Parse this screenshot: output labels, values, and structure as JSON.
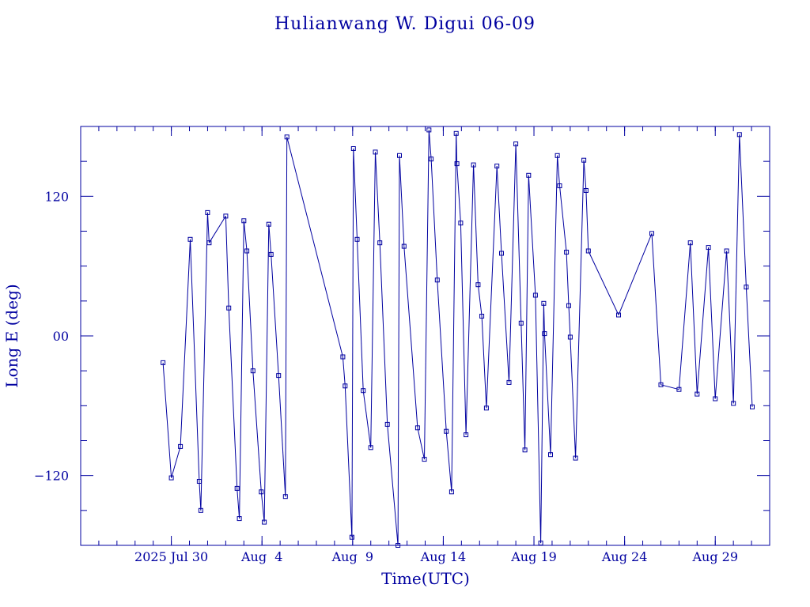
{
  "chart_data": {
    "type": "line",
    "title": "Hulianwang W. Digui 06-09",
    "xlabel": "Time(UTC)",
    "ylabel": "Long E (deg)",
    "x_unit": "days in UTC, date ticks",
    "xlim": [
      "2025-07-25",
      "2025-09-01"
    ],
    "ylim": [
      -180,
      180
    ],
    "yticks": [
      -120,
      0,
      120
    ],
    "ytick_labels": [
      "−120",
      "00",
      "120"
    ],
    "xticks": [
      {
        "date": "2025-07-30",
        "label": "2025 Jul 30"
      },
      {
        "date": "2025-08-04",
        "label": "Aug  4"
      },
      {
        "date": "2025-08-09",
        "label": "Aug  9"
      },
      {
        "date": "2025-08-14",
        "label": "Aug 14"
      },
      {
        "date": "2025-08-19",
        "label": "Aug 19"
      },
      {
        "date": "2025-08-24",
        "label": "Aug 24"
      },
      {
        "date": "2025-08-29",
        "label": "Aug 29"
      }
    ],
    "grid": false,
    "color": "#0000a0",
    "series": [
      {
        "points": [
          [
            "2025-07-29 13:00",
            -23
          ],
          [
            "2025-07-30 00:00",
            -122
          ],
          [
            "2025-07-30 12:00",
            -95
          ],
          [
            "2025-07-31 01:00",
            83
          ],
          [
            "2025-07-31 13:00",
            -125
          ],
          [
            "2025-07-31 15:00",
            -150
          ],
          [
            "2025-08-01 00:00",
            106
          ],
          [
            "2025-08-01 02:00",
            80
          ],
          [
            "2025-08-02 00:00",
            103
          ],
          [
            "2025-08-02 04:00",
            24
          ],
          [
            "2025-08-02 15:00",
            -131
          ],
          [
            "2025-08-02 18:00",
            -157
          ],
          [
            "2025-08-03 00:00",
            99
          ],
          [
            "2025-08-03 04:00",
            73
          ],
          [
            "2025-08-03 12:00",
            -30
          ],
          [
            "2025-08-03 23:00",
            -134
          ],
          [
            "2025-08-04 03:00",
            -160
          ],
          [
            "2025-08-04 09:00",
            96
          ],
          [
            "2025-08-04 12:00",
            70
          ],
          [
            "2025-08-04 22:00",
            -34
          ],
          [
            "2025-08-05 07:00",
            -138
          ],
          [
            "2025-08-05 09:00",
            171
          ],
          [
            "2025-08-08 11:00",
            -18
          ],
          [
            "2025-08-08 14:00",
            -43
          ],
          [
            "2025-08-08 23:00",
            -173
          ],
          [
            "2025-08-09 01:00",
            161
          ],
          [
            "2025-08-09 06:00",
            83
          ],
          [
            "2025-08-09 14:00",
            -47
          ],
          [
            "2025-08-10 00:00",
            -96
          ],
          [
            "2025-08-10 06:00",
            158
          ],
          [
            "2025-08-10 12:00",
            80
          ],
          [
            "2025-08-10 22:00",
            -76
          ],
          [
            "2025-08-11 12:00",
            -180
          ],
          [
            "2025-08-11 14:00",
            155
          ],
          [
            "2025-08-11 20:00",
            77
          ],
          [
            "2025-08-12 14:00",
            -79
          ],
          [
            "2025-08-12 23:00",
            -106
          ],
          [
            "2025-08-13 05:00",
            177
          ],
          [
            "2025-08-13 08:00",
            152
          ],
          [
            "2025-08-13 16:00",
            48
          ],
          [
            "2025-08-14 04:00",
            -82
          ],
          [
            "2025-08-14 11:00",
            -134
          ],
          [
            "2025-08-14 17:00",
            174
          ],
          [
            "2025-08-14 18:00",
            148
          ],
          [
            "2025-08-14 23:00",
            97
          ],
          [
            "2025-08-15 06:00",
            -85
          ],
          [
            "2025-08-15 16:00",
            147
          ],
          [
            "2025-08-15 22:00",
            44
          ],
          [
            "2025-08-16 03:00",
            17
          ],
          [
            "2025-08-16 09:00",
            -62
          ],
          [
            "2025-08-16 23:00",
            146
          ],
          [
            "2025-08-17 05:00",
            71
          ],
          [
            "2025-08-17 15:00",
            -40
          ],
          [
            "2025-08-18 00:00",
            165
          ],
          [
            "2025-08-18 07:00",
            11
          ],
          [
            "2025-08-18 12:00",
            -98
          ],
          [
            "2025-08-18 17:00",
            138
          ],
          [
            "2025-08-19 02:00",
            35
          ],
          [
            "2025-08-19 09:00",
            -178
          ],
          [
            "2025-08-19 13:00",
            28
          ],
          [
            "2025-08-19 14:00",
            2
          ],
          [
            "2025-08-19 22:00",
            -102
          ],
          [
            "2025-08-20 07:00",
            155
          ],
          [
            "2025-08-20 10:00",
            129
          ],
          [
            "2025-08-20 19:00",
            72
          ],
          [
            "2025-08-20 22:00",
            26
          ],
          [
            "2025-08-21 00:00",
            -1
          ],
          [
            "2025-08-21 07:00",
            -105
          ],
          [
            "2025-08-21 18:00",
            151
          ],
          [
            "2025-08-21 21:00",
            125
          ],
          [
            "2025-08-22 00:00",
            73
          ],
          [
            "2025-08-23 16:00",
            18
          ],
          [
            "2025-08-25 12:00",
            88
          ],
          [
            "2025-08-26 00:00",
            -42
          ],
          [
            "2025-08-27 00:00",
            -46
          ],
          [
            "2025-08-27 15:00",
            80
          ],
          [
            "2025-08-28 00:00",
            -50
          ],
          [
            "2025-08-28 15:00",
            76
          ],
          [
            "2025-08-29 00:00",
            -54
          ],
          [
            "2025-08-29 15:00",
            73
          ],
          [
            "2025-08-30 00:00",
            -58
          ],
          [
            "2025-08-30 08:00",
            173
          ],
          [
            "2025-08-30 17:00",
            42
          ],
          [
            "2025-08-31 01:00",
            -61
          ]
        ]
      }
    ]
  }
}
